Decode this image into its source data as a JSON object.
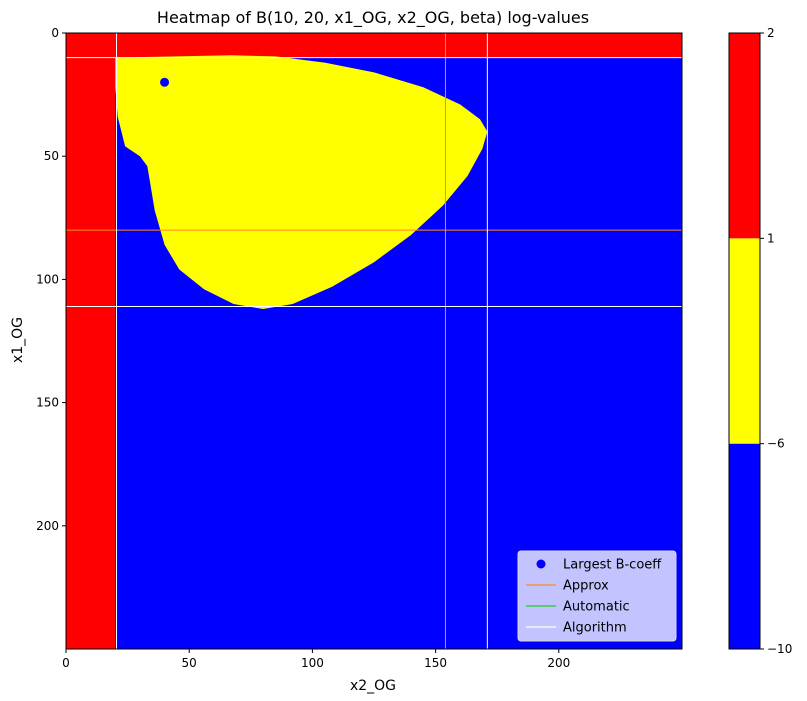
{
  "chart_data": {
    "type": "heatmap",
    "title": "Heatmap of B(10, 20, x1_OG, x2_OG, beta) log-values",
    "xlabel": "x2_OG",
    "ylabel": "x1_OG",
    "xlim": [
      0,
      250
    ],
    "ylim": [
      250,
      0
    ],
    "x_ticks": [
      0,
      50,
      100,
      150,
      200
    ],
    "y_ticks": [
      0,
      50,
      100,
      150,
      200
    ],
    "colormap": {
      "type": "discrete",
      "levels": [
        {
          "from": -10,
          "to": -6,
          "color": "#0000ff"
        },
        {
          "from": -6,
          "to": 1,
          "color": "#ffff00"
        },
        {
          "from": 1,
          "to": 2,
          "color": "#ff0000"
        }
      ],
      "tick_values": [
        -10,
        -6,
        1,
        2
      ],
      "tick_labels": [
        "−10",
        "−6",
        "1",
        "2"
      ]
    },
    "regions": {
      "background_color": "#0000ff",
      "red_left_band_x2": [
        0,
        20
      ],
      "red_top_band_x1": [
        0,
        10
      ],
      "yellow_region_outline": [
        [
          20,
          10
        ],
        [
          67,
          9
        ],
        [
          85,
          9.5
        ],
        [
          105,
          12
        ],
        [
          125,
          16
        ],
        [
          145,
          22
        ],
        [
          160,
          29
        ],
        [
          168,
          35
        ],
        [
          171,
          40
        ],
        [
          169,
          47
        ],
        [
          163,
          58
        ],
        [
          153,
          70
        ],
        [
          140,
          82
        ],
        [
          125,
          93
        ],
        [
          108,
          103
        ],
        [
          92,
          110
        ],
        [
          80,
          112
        ],
        [
          68,
          110
        ],
        [
          56,
          104
        ],
        [
          46,
          96
        ],
        [
          40,
          86
        ],
        [
          36,
          72
        ],
        [
          34,
          60
        ],
        [
          33,
          54
        ],
        [
          30,
          50
        ],
        [
          24,
          46
        ],
        [
          21,
          34
        ],
        [
          20,
          22
        ]
      ]
    },
    "reference_lines": [
      {
        "name": "Approx",
        "color": "#ff8c1a",
        "orientation": "vertical",
        "x": 154
      },
      {
        "name": "Approx",
        "color": "#ff8c1a",
        "orientation": "horizontal",
        "y": 80
      },
      {
        "name": "Algorithm",
        "color": "#ffffff",
        "orientation": "vertical",
        "x": 20.5
      },
      {
        "name": "Algorithm",
        "color": "#ffffff",
        "orientation": "vertical",
        "x": 171
      },
      {
        "name": "Algorithm",
        "color": "#ffffff",
        "orientation": "horizontal",
        "y": 10
      },
      {
        "name": "Algorithm",
        "color": "#ffffff",
        "orientation": "horizontal",
        "y": 111
      }
    ],
    "points": [
      {
        "name": "Largest B-coeff",
        "x": 40,
        "y": 20,
        "color": "#0000ff"
      }
    ],
    "legend": {
      "location": "lower-right",
      "entries": [
        {
          "label": "Largest B-coeff",
          "kind": "marker",
          "color": "#0000ff"
        },
        {
          "label": "Approx",
          "kind": "line",
          "color": "#ff8c1a"
        },
        {
          "label": "Automatic",
          "kind": "line",
          "color": "#22cc22"
        },
        {
          "label": "Algorithm",
          "kind": "line",
          "color": "#ffffff"
        }
      ]
    },
    "grid": false
  }
}
